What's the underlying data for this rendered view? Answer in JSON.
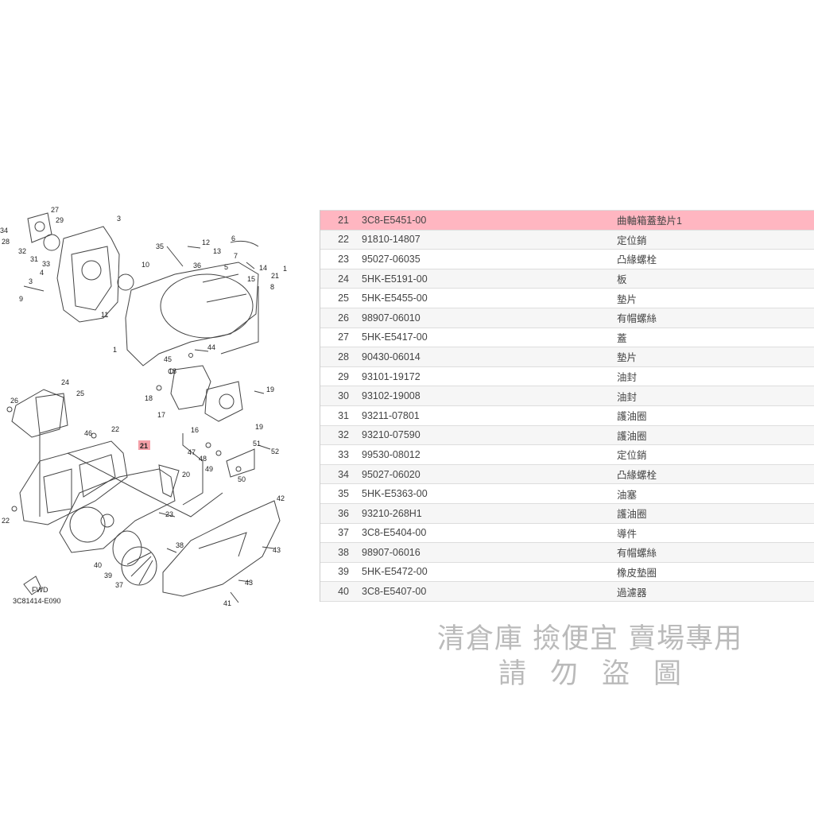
{
  "diagram": {
    "code": "3C81414-E090",
    "fwd_label": "FWD",
    "highlighted_callout": "21",
    "highlight_color": "#f4a0a8",
    "callouts": [
      "27",
      "29",
      "34",
      "28",
      "3",
      "32",
      "31",
      "33",
      "10",
      "4",
      "3",
      "9",
      "11",
      "35",
      "12",
      "6",
      "13",
      "36",
      "7",
      "5",
      "14",
      "15",
      "1",
      "21",
      "8",
      "1",
      "44",
      "45",
      "18",
      "24",
      "25",
      "19",
      "26",
      "18",
      "17",
      "16",
      "22",
      "46",
      "21",
      "19",
      "51",
      "47",
      "52",
      "48",
      "49",
      "20",
      "50",
      "42",
      "22",
      "23",
      "38",
      "43",
      "40",
      "39",
      "43",
      "37",
      "41"
    ]
  },
  "table": {
    "highlight_color": "#ffb6c1",
    "rows": [
      {
        "no": "21",
        "part": "3C8-E5451-00",
        "name": "曲軸箱蓋墊片1",
        "highlighted": true
      },
      {
        "no": "22",
        "part": "91810-14807",
        "name": "定位銷"
      },
      {
        "no": "23",
        "part": "95027-06035",
        "name": "凸緣螺栓"
      },
      {
        "no": "24",
        "part": "5HK-E5191-00",
        "name": "板"
      },
      {
        "no": "25",
        "part": "5HK-E5455-00",
        "name": "墊片"
      },
      {
        "no": "26",
        "part": "98907-06010",
        "name": "有帽螺絲"
      },
      {
        "no": "27",
        "part": "5HK-E5417-00",
        "name": "蓋"
      },
      {
        "no": "28",
        "part": "90430-06014",
        "name": "墊片"
      },
      {
        "no": "29",
        "part": "93101-19172",
        "name": "油封"
      },
      {
        "no": "30",
        "part": "93102-19008",
        "name": "油封"
      },
      {
        "no": "31",
        "part": "93211-07801",
        "name": "護油圈"
      },
      {
        "no": "32",
        "part": "93210-07590",
        "name": "護油圈"
      },
      {
        "no": "33",
        "part": "99530-08012",
        "name": "定位銷"
      },
      {
        "no": "34",
        "part": "95027-06020",
        "name": "凸緣螺栓"
      },
      {
        "no": "35",
        "part": "5HK-E5363-00",
        "name": "油塞"
      },
      {
        "no": "36",
        "part": "93210-268H1",
        "name": "護油圈"
      },
      {
        "no": "37",
        "part": "3C8-E5404-00",
        "name": "導件"
      },
      {
        "no": "38",
        "part": "98907-06016",
        "name": "有帽螺絲"
      },
      {
        "no": "39",
        "part": "5HK-E5472-00",
        "name": "橡皮墊圈"
      },
      {
        "no": "40",
        "part": "3C8-E5407-00",
        "name": "過濾器"
      }
    ]
  },
  "watermark": {
    "line1": "清倉庫 撿便宜 賣場專用",
    "line2": "請勿盜圖"
  }
}
